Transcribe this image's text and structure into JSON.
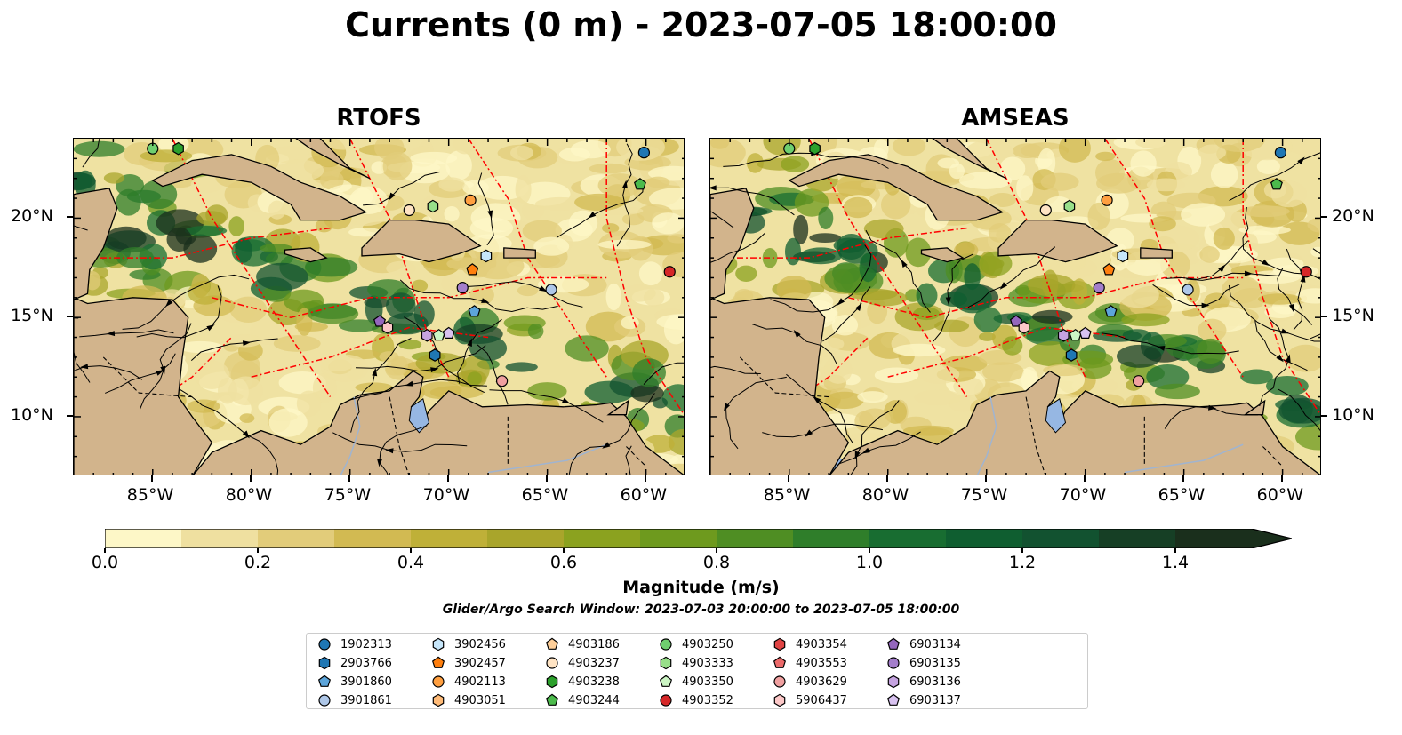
{
  "title": "Currents (0 m) - 2023-07-05 18:00:00",
  "panels": [
    {
      "title": "RTOFS"
    },
    {
      "title": "AMSEAS"
    }
  ],
  "axes": {
    "lon_labels": [
      "85°W",
      "80°W",
      "75°W",
      "70°W",
      "65°W",
      "60°W"
    ],
    "lat_labels": [
      "20°N",
      "15°N",
      "10°N"
    ],
    "lon_range": [
      -89,
      -58
    ],
    "lat_range": [
      7,
      24
    ]
  },
  "colorbar": {
    "label": "Magnitude (m/s)",
    "ticks": [
      "0.0",
      "0.2",
      "0.4",
      "0.6",
      "0.8",
      "1.0",
      "1.2",
      "1.4"
    ],
    "range": [
      0,
      1.5
    ],
    "extend": "max",
    "colors": [
      "#fdf7c7",
      "#efe0a0",
      "#e2cc7a",
      "#d2ba52",
      "#bfb038",
      "#a9a52b",
      "#8ba21f",
      "#6e9a1e",
      "#4f8e23",
      "#2f7e2a",
      "#186d31",
      "#0f5e30",
      "#125230",
      "#163f25",
      "#1a2f1c"
    ]
  },
  "search_window": "Glider/Argo Search Window: 2023-07-03 20:00:00 to 2023-07-05 18:00:00",
  "legend": [
    {
      "id": "1902313",
      "color": "#1f77b4",
      "marker": "circle"
    },
    {
      "id": "2903766",
      "color": "#1f77b4",
      "marker": "hexagon"
    },
    {
      "id": "3901860",
      "color": "#5da5da",
      "marker": "pentagon"
    },
    {
      "id": "3901861",
      "color": "#aec7e8",
      "marker": "circle"
    },
    {
      "id": "3902456",
      "color": "#c6e6fa",
      "marker": "hexagon"
    },
    {
      "id": "3902457",
      "color": "#ff7f0e",
      "marker": "pentagon"
    },
    {
      "id": "4902113",
      "color": "#ff9f40",
      "marker": "circle"
    },
    {
      "id": "4903051",
      "color": "#ffbb78",
      "marker": "hexagon"
    },
    {
      "id": "4903186",
      "color": "#ffcf99",
      "marker": "pentagon"
    },
    {
      "id": "4903237",
      "color": "#ffe4c4",
      "marker": "circle"
    },
    {
      "id": "4903238",
      "color": "#2ca02c",
      "marker": "hexagon"
    },
    {
      "id": "4903244",
      "color": "#4cbb4c",
      "marker": "pentagon"
    },
    {
      "id": "4903250",
      "color": "#6fcf6f",
      "marker": "circle"
    },
    {
      "id": "4903333",
      "color": "#98df8a",
      "marker": "hexagon"
    },
    {
      "id": "4903350",
      "color": "#ccf5c4",
      "marker": "pentagon"
    },
    {
      "id": "4903352",
      "color": "#d62728",
      "marker": "circle"
    },
    {
      "id": "4903354",
      "color": "#e04444",
      "marker": "hexagon"
    },
    {
      "id": "4903553",
      "color": "#ec6a6a",
      "marker": "pentagon"
    },
    {
      "id": "4903629",
      "color": "#f0a0a0",
      "marker": "circle"
    },
    {
      "id": "5906437",
      "color": "#fcc8c8",
      "marker": "hexagon"
    },
    {
      "id": "6903134",
      "color": "#9467bd",
      "marker": "pentagon"
    },
    {
      "id": "6903135",
      "color": "#a47ecb",
      "marker": "circle"
    },
    {
      "id": "6903136",
      "color": "#c5a3e0",
      "marker": "hexagon"
    },
    {
      "id": "6903137",
      "color": "#d8c2f0",
      "marker": "pentagon"
    }
  ],
  "floats": [
    {
      "id": "1902313",
      "lon": -60.1,
      "lat": 23.3
    },
    {
      "id": "4903244",
      "lon": -60.3,
      "lat": 21.7
    },
    {
      "id": "4903250",
      "lon": -85.0,
      "lat": 23.5
    },
    {
      "id": "4903238",
      "lon": -83.7,
      "lat": 23.5
    },
    {
      "id": "4903237",
      "lon": -72.0,
      "lat": 20.4
    },
    {
      "id": "4903333",
      "lon": -70.8,
      "lat": 20.6
    },
    {
      "id": "4902113",
      "lon": -68.9,
      "lat": 20.9
    },
    {
      "id": "3902456",
      "lon": -68.1,
      "lat": 18.1
    },
    {
      "id": "3902457",
      "lon": -68.8,
      "lat": 17.4
    },
    {
      "id": "4903352",
      "lon": -58.8,
      "lat": 17.3
    },
    {
      "id": "3901861",
      "lon": -64.8,
      "lat": 16.4
    },
    {
      "id": "6903135",
      "lon": -69.3,
      "lat": 16.5
    },
    {
      "id": "3901860",
      "lon": -68.7,
      "lat": 15.3
    },
    {
      "id": "6903134",
      "lon": -73.5,
      "lat": 14.8
    },
    {
      "id": "5906437",
      "lon": -73.1,
      "lat": 14.5
    },
    {
      "id": "6903136",
      "lon": -71.1,
      "lat": 14.1
    },
    {
      "id": "4903350",
      "lon": -70.5,
      "lat": 14.1
    },
    {
      "id": "6903137",
      "lon": -70.0,
      "lat": 14.2
    },
    {
      "id": "2903766",
      "lon": -70.7,
      "lat": 13.1
    },
    {
      "id": "4903629",
      "lon": -67.3,
      "lat": 11.8
    }
  ]
}
